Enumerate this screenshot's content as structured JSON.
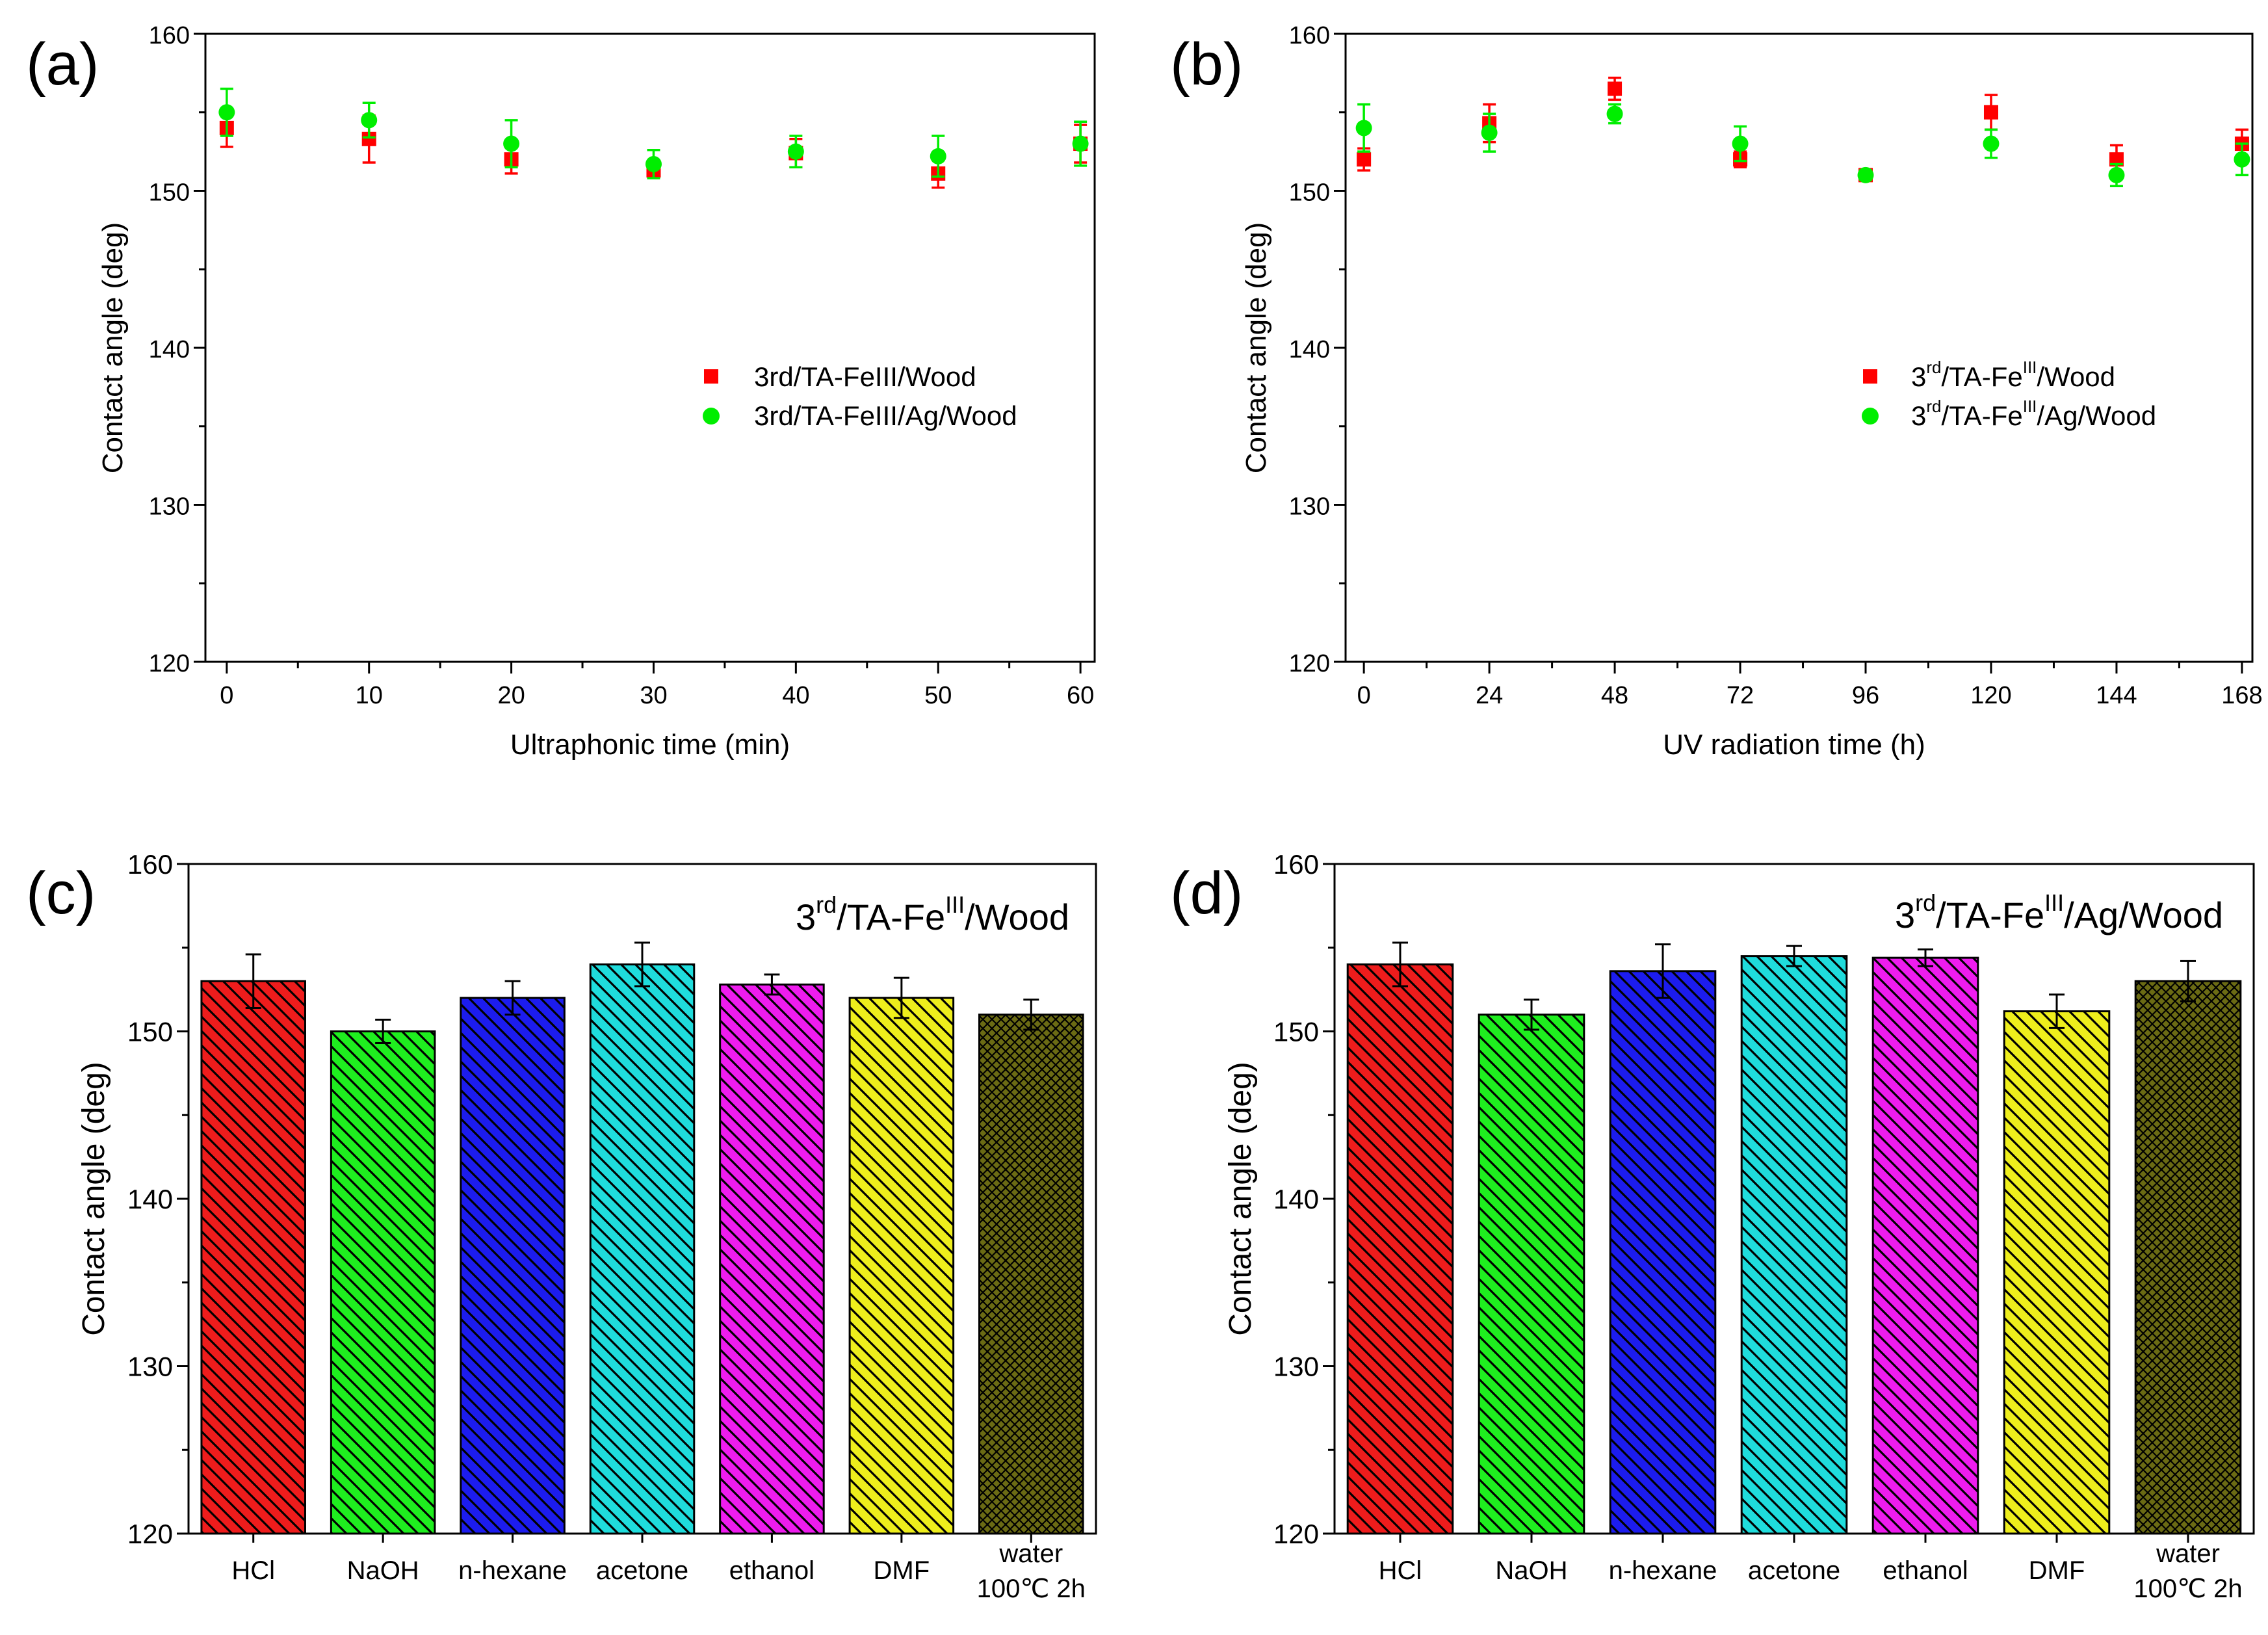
{
  "chart_data": [
    {
      "panel_label": "(a)",
      "type": "scatter",
      "xlabel": "Ultraphonic time (min)",
      "ylabel": "Contact angle (deg)",
      "xlim": [
        -1.5,
        61
      ],
      "ylim": [
        120,
        160
      ],
      "xticks": [
        0,
        10,
        20,
        30,
        40,
        50,
        60
      ],
      "yticks": [
        120,
        130,
        140,
        150,
        160
      ],
      "xticklabels": [
        "0",
        "10",
        "20",
        "30",
        "40",
        "50",
        "60"
      ],
      "yticklabels": [
        "120",
        "130",
        "140",
        "150",
        "160"
      ],
      "legend_position": "center-right",
      "series": [
        {
          "name": "3rd/TA-FeIII/Wood",
          "marker": "square",
          "color": "#ff0000",
          "x": [
            0,
            10,
            20,
            30,
            40,
            50,
            60
          ],
          "y": [
            154.0,
            153.3,
            152.0,
            151.3,
            152.4,
            151.1,
            153.0
          ],
          "err": [
            1.2,
            1.5,
            0.9,
            0.4,
            0.9,
            0.9,
            1.2
          ]
        },
        {
          "name": "3rd/TA-FeIII/Ag/Wood",
          "marker": "circle",
          "color": "#00ee00",
          "x": [
            0,
            10,
            20,
            30,
            40,
            50,
            60
          ],
          "y": [
            155.0,
            154.5,
            153.0,
            151.7,
            152.5,
            152.2,
            153.0
          ],
          "err": [
            1.5,
            1.1,
            1.5,
            0.9,
            1.0,
            1.3,
            1.4
          ]
        }
      ]
    },
    {
      "panel_label": "(b)",
      "type": "scatter",
      "xlabel": "UV radiation time (h)",
      "ylabel": "Contact angle (deg)",
      "xlim": [
        -3.5,
        170
      ],
      "ylim": [
        120,
        160
      ],
      "xticks": [
        0,
        24,
        48,
        72,
        96,
        120,
        144,
        168
      ],
      "yticks": [
        120,
        130,
        140,
        150,
        160
      ],
      "xticklabels": [
        "0",
        "24",
        "48",
        "72",
        "96",
        "120",
        "144",
        "168"
      ],
      "yticklabels": [
        "120",
        "130",
        "140",
        "150",
        "160"
      ],
      "legend_position": "center-right",
      "series": [
        {
          "name_base": "3",
          "name_sup1": "rd",
          "name_mid": "/TA-Fe",
          "name_sup2": "III",
          "name_end": "/Wood",
          "marker": "square",
          "color": "#ff0000",
          "x": [
            0,
            24,
            48,
            72,
            96,
            120,
            144,
            168
          ],
          "y": [
            152.0,
            154.3,
            156.5,
            152.0,
            151.0,
            155.0,
            152.0,
            153.0
          ],
          "err": [
            0.7,
            1.2,
            0.7,
            0.5,
            0.3,
            1.1,
            0.9,
            0.9
          ]
        },
        {
          "name_base": "3",
          "name_sup1": "rd",
          "name_mid": "/TA-Fe",
          "name_sup2": "III",
          "name_end": "/Ag/Wood",
          "marker": "circle",
          "color": "#00ee00",
          "x": [
            0,
            24,
            48,
            72,
            96,
            120,
            144,
            168
          ],
          "y": [
            154.0,
            153.7,
            154.9,
            153.0,
            151.0,
            153.0,
            151.0,
            152.0
          ],
          "err": [
            1.5,
            1.2,
            0.6,
            1.1,
            0.3,
            0.9,
            0.7,
            1.0
          ]
        }
      ]
    },
    {
      "panel_label": "(c)",
      "type": "bar",
      "title_base": "3",
      "title_sup1": "rd",
      "title_mid": "/TA-Fe",
      "title_sup2": "III",
      "title_end": "/Wood",
      "ylabel": "Contact angle (deg)",
      "ylim": [
        120,
        160
      ],
      "yticks": [
        120,
        130,
        140,
        150,
        160
      ],
      "yticklabels": [
        "120",
        "130",
        "140",
        "150",
        "160"
      ],
      "categories": [
        "HCl",
        "NaOH",
        "n-hexane",
        "acetone",
        "ethanol",
        "DMF",
        "water 100℃ 2h"
      ],
      "category_lines": [
        [
          "HCl"
        ],
        [
          "NaOH"
        ],
        [
          "n-hexane"
        ],
        [
          "acetone"
        ],
        [
          "ethanol"
        ],
        [
          "DMF"
        ],
        [
          "water",
          "100℃ 2h"
        ]
      ],
      "values": [
        153.0,
        150.0,
        152.0,
        154.0,
        152.8,
        152.0,
        151.0
      ],
      "errors": [
        1.6,
        0.7,
        1.0,
        1.3,
        0.6,
        1.2,
        0.9
      ],
      "colors": [
        "#ee1c1c",
        "#1fee1f",
        "#1c1cee",
        "#1fdcdc",
        "#ee1cee",
        "#eeee1c",
        "#6b6b14"
      ]
    },
    {
      "panel_label": "(d)",
      "type": "bar",
      "title_base": "3",
      "title_sup1": "rd",
      "title_mid": "/TA-Fe",
      "title_sup2": "III",
      "title_end": "/Ag/Wood",
      "ylabel": "Contact angle (deg)",
      "ylim": [
        120,
        160
      ],
      "yticks": [
        120,
        130,
        140,
        150,
        160
      ],
      "yticklabels": [
        "120",
        "130",
        "140",
        "150",
        "160"
      ],
      "categories": [
        "HCl",
        "NaOH",
        "n-hexane",
        "acetone",
        "ethanol",
        "DMF",
        "water 100℃ 2h"
      ],
      "category_lines": [
        [
          "HCl"
        ],
        [
          "NaOH"
        ],
        [
          "n-hexane"
        ],
        [
          "acetone"
        ],
        [
          "ethanol"
        ],
        [
          "DMF"
        ],
        [
          "water",
          "100℃ 2h"
        ]
      ],
      "values": [
        154.0,
        151.0,
        153.6,
        154.5,
        154.4,
        151.2,
        153.0
      ],
      "errors": [
        1.3,
        0.9,
        1.6,
        0.6,
        0.5,
        1.0,
        1.2
      ],
      "colors": [
        "#ee1c1c",
        "#1fee1f",
        "#1c1cee",
        "#1fdcdc",
        "#ee1cee",
        "#eeee1c",
        "#6b6b14"
      ]
    }
  ]
}
